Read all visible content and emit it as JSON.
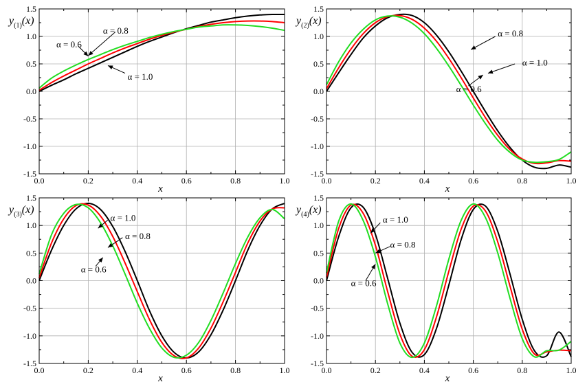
{
  "chart_data": [
    {
      "type": "line",
      "ylabel_base": "y",
      "ylabel_sub": "(1)",
      "ylabel_arg": "(x)",
      "xlabel": "x",
      "xlim": [
        0,
        1.0
      ],
      "ylim": [
        -1.5,
        1.5
      ],
      "xticks": [
        "0.0",
        "0.2",
        "0.4",
        "0.6",
        "0.8",
        "1.0"
      ],
      "yticks": [
        "-1.5",
        "-1.0",
        "-0.5",
        "0.0",
        "0.5",
        "1.0",
        "1.5"
      ],
      "grid": true,
      "x": [
        0,
        0.05,
        0.1,
        0.15,
        0.2,
        0.25,
        0.3,
        0.35,
        0.4,
        0.45,
        0.5,
        0.55,
        0.6,
        0.65,
        0.7,
        0.75,
        0.8,
        0.85,
        0.9,
        0.95,
        1.0
      ],
      "series": [
        {
          "alpha": 1.0,
          "color": "#000000",
          "values": [
            0.0,
            0.11,
            0.21,
            0.32,
            0.42,
            0.52,
            0.62,
            0.72,
            0.82,
            0.91,
            0.99,
            1.07,
            1.14,
            1.2,
            1.26,
            1.3,
            1.34,
            1.37,
            1.39,
            1.4,
            1.4
          ]
        },
        {
          "alpha": 0.8,
          "color": "#ff0000",
          "values": [
            0.02,
            0.16,
            0.28,
            0.39,
            0.5,
            0.6,
            0.7,
            0.79,
            0.87,
            0.95,
            1.02,
            1.08,
            1.13,
            1.18,
            1.22,
            1.25,
            1.27,
            1.28,
            1.28,
            1.27,
            1.25
          ]
        },
        {
          "alpha": 0.6,
          "color": "#22dd22",
          "values": [
            0.06,
            0.24,
            0.37,
            0.48,
            0.58,
            0.67,
            0.76,
            0.84,
            0.91,
            0.98,
            1.04,
            1.09,
            1.13,
            1.17,
            1.19,
            1.21,
            1.21,
            1.2,
            1.18,
            1.15,
            1.11
          ]
        }
      ],
      "annotations": [
        {
          "text": "α = 0.8",
          "x": 0.26,
          "y": 1.1,
          "ax": 0.31,
          "ay": 1.08,
          "tx": 0.2,
          "ty": 0.65
        },
        {
          "text": "α = 0.6",
          "x": 0.07,
          "y": 0.85,
          "ax": 0.16,
          "ay": 0.82,
          "tx": 0.2,
          "ty": 0.64
        },
        {
          "text": "α = 1.0",
          "x": 0.36,
          "y": 0.26,
          "ax": 0.35,
          "ay": 0.33,
          "tx": 0.28,
          "ty": 0.47
        }
      ]
    },
    {
      "type": "line",
      "ylabel_base": "y",
      "ylabel_sub": "(2)",
      "ylabel_arg": "(x)",
      "xlabel": "x",
      "xlim": [
        0,
        1.0
      ],
      "ylim": [
        -1.5,
        1.5
      ],
      "xticks": [
        "0.0",
        "0.2",
        "0.4",
        "0.6",
        "0.8",
        "1.0"
      ],
      "yticks": [
        "-1.5",
        "-1.0",
        "-0.5",
        "0.0",
        "0.5",
        "1.0",
        "1.5"
      ],
      "grid": true,
      "x": [
        0,
        0.05,
        0.1,
        0.15,
        0.2,
        0.25,
        0.3,
        0.35,
        0.4,
        0.45,
        0.5,
        0.55,
        0.6,
        0.65,
        0.7,
        0.75,
        0.8,
        0.85,
        0.9,
        0.95,
        1.0
      ],
      "series": [
        {
          "alpha": 1.0,
          "color": "#000000",
          "values": [
            0.0,
            0.34,
            0.67,
            0.97,
            1.19,
            1.34,
            1.4,
            1.38,
            1.25,
            1.02,
            0.72,
            0.37,
            0.0,
            -0.37,
            -0.72,
            -1.02,
            -1.25,
            -1.38,
            -1.4,
            -1.34,
            -1.38
          ]
        },
        {
          "alpha": 0.8,
          "color": "#ff0000",
          "values": [
            0.05,
            0.43,
            0.77,
            1.05,
            1.25,
            1.36,
            1.38,
            1.31,
            1.15,
            0.91,
            0.6,
            0.25,
            -0.12,
            -0.48,
            -0.8,
            -1.06,
            -1.23,
            -1.31,
            -1.3,
            -1.26,
            -1.27
          ]
        },
        {
          "alpha": 0.6,
          "color": "#22dd22",
          "values": [
            0.12,
            0.54,
            0.88,
            1.13,
            1.3,
            1.37,
            1.35,
            1.24,
            1.05,
            0.78,
            0.46,
            0.11,
            -0.25,
            -0.59,
            -0.89,
            -1.11,
            -1.25,
            -1.29,
            -1.28,
            -1.24,
            -1.1
          ]
        }
      ],
      "annotations": [
        {
          "text": "α = 0.8",
          "x": 0.7,
          "y": 1.05,
          "ax": 0.69,
          "ay": 1.0,
          "tx": 0.59,
          "ty": 0.76
        },
        {
          "text": "α = 1.0",
          "x": 0.8,
          "y": 0.52,
          "ax": 0.77,
          "ay": 0.5,
          "tx": 0.66,
          "ty": 0.33
        },
        {
          "text": "α = 0.6",
          "x": 0.53,
          "y": 0.04,
          "ax": 0.58,
          "ay": 0.1,
          "tx": 0.64,
          "ty": 0.3
        }
      ]
    },
    {
      "type": "line",
      "ylabel_base": "y",
      "ylabel_sub": "(3)",
      "ylabel_arg": "(x)",
      "xlabel": "x",
      "xlim": [
        0,
        1.0
      ],
      "ylim": [
        -1.5,
        1.5
      ],
      "xticks": [
        "0.0",
        "0.2",
        "0.4",
        "0.6",
        "0.8",
        "1.0"
      ],
      "yticks": [
        "-1.5",
        "-1.0",
        "-0.5",
        "0.0",
        "0.5",
        "1.0",
        "1.5"
      ],
      "grid": true,
      "x": [
        0,
        0.05,
        0.1,
        0.15,
        0.2,
        0.25,
        0.3,
        0.35,
        0.4,
        0.45,
        0.5,
        0.55,
        0.6,
        0.65,
        0.7,
        0.75,
        0.8,
        0.85,
        0.9,
        0.95,
        1.0
      ],
      "series": [
        {
          "alpha": 1.0,
          "color": "#000000",
          "values": [
            0.0,
            0.55,
            1.0,
            1.3,
            1.4,
            1.29,
            0.98,
            0.53,
            0.0,
            -0.55,
            -1.0,
            -1.3,
            -1.4,
            -1.29,
            -0.98,
            -0.53,
            0.0,
            0.55,
            1.0,
            1.3,
            1.4
          ]
        },
        {
          "alpha": 0.8,
          "color": "#ff0000",
          "values": [
            0.05,
            0.68,
            1.12,
            1.36,
            1.37,
            1.17,
            0.8,
            0.32,
            -0.2,
            -0.71,
            -1.12,
            -1.36,
            -1.4,
            -1.22,
            -0.86,
            -0.38,
            0.15,
            0.68,
            1.08,
            1.3,
            1.32
          ]
        },
        {
          "alpha": 0.6,
          "color": "#22dd22",
          "values": [
            0.12,
            0.83,
            1.22,
            1.38,
            1.32,
            1.05,
            0.63,
            0.12,
            -0.41,
            -0.87,
            -1.22,
            -1.39,
            -1.35,
            -1.12,
            -0.72,
            -0.22,
            0.31,
            0.79,
            1.14,
            1.29,
            1.12
          ]
        }
      ],
      "annotations": [
        {
          "text": "α = 1.0",
          "x": 0.29,
          "y": 1.13,
          "ax": 0.28,
          "ay": 1.1,
          "tx": 0.24,
          "ty": 0.95
        },
        {
          "text": "α = 0.8",
          "x": 0.35,
          "y": 0.8,
          "ax": 0.34,
          "ay": 0.78,
          "tx": 0.28,
          "ty": 0.6
        },
        {
          "text": "α = 0.6",
          "x": 0.17,
          "y": 0.2,
          "ax": 0.23,
          "ay": 0.26,
          "tx": 0.26,
          "ty": 0.42
        }
      ]
    },
    {
      "type": "line",
      "ylabel_base": "y",
      "ylabel_sub": "(4)",
      "ylabel_arg": "(x)",
      "xlabel": "x",
      "xlim": [
        0,
        1.0
      ],
      "ylim": [
        -1.5,
        1.5
      ],
      "xticks": [
        "0.0",
        "0.2",
        "0.4",
        "0.6",
        "0.8",
        "1.0"
      ],
      "yticks": [
        "-1.5",
        "-1.0",
        "-0.5",
        "0.0",
        "0.5",
        "1.0",
        "1.5"
      ],
      "grid": true,
      "x": [
        0,
        0.05,
        0.1,
        0.15,
        0.2,
        0.25,
        0.3,
        0.35,
        0.4,
        0.45,
        0.5,
        0.55,
        0.6,
        0.65,
        0.7,
        0.75,
        0.8,
        0.85,
        0.9,
        0.95,
        1.0
      ],
      "series": [
        {
          "alpha": 1.0,
          "color": "#000000",
          "values": [
            0.0,
            0.8,
            1.32,
            1.33,
            0.84,
            0.04,
            -0.77,
            -1.3,
            -1.34,
            -0.86,
            -0.08,
            0.74,
            1.29,
            1.35,
            0.89,
            0.12,
            -0.7,
            -1.27,
            -1.36,
            -0.93,
            -1.38
          ]
        },
        {
          "alpha": 0.8,
          "color": "#ff0000",
          "values": [
            0.06,
            0.95,
            1.37,
            1.22,
            0.64,
            -0.2,
            -0.97,
            -1.37,
            -1.25,
            -0.65,
            0.17,
            0.93,
            1.35,
            1.26,
            0.7,
            -0.1,
            -0.88,
            -1.33,
            -1.29,
            -1.26,
            -1.27
          ]
        },
        {
          "alpha": 0.6,
          "color": "#22dd22",
          "values": [
            0.14,
            1.08,
            1.39,
            1.09,
            0.43,
            -0.42,
            -1.13,
            -1.39,
            -1.13,
            -0.45,
            0.39,
            1.09,
            1.39,
            1.14,
            0.5,
            -0.32,
            -1.05,
            -1.38,
            -1.27,
            -1.26,
            -1.1
          ]
        }
      ],
      "annotations": [
        {
          "text": "α = 1.0",
          "x": 0.23,
          "y": 1.1,
          "ax": 0.22,
          "ay": 1.05,
          "tx": 0.18,
          "ty": 0.86
        },
        {
          "text": "α = 0.8",
          "x": 0.26,
          "y": 0.65,
          "ax": 0.26,
          "ay": 0.62,
          "tx": 0.2,
          "ty": 0.5
        },
        {
          "text": "α = 0.6",
          "x": 0.1,
          "y": -0.05,
          "ax": 0.16,
          "ay": 0.0,
          "tx": 0.2,
          "ty": 0.3
        }
      ]
    }
  ]
}
